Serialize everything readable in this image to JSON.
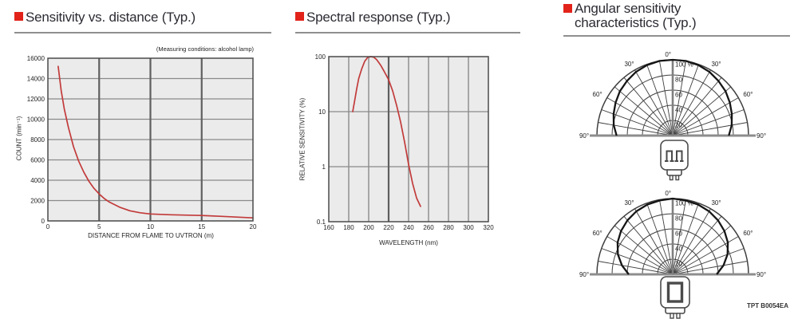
{
  "colors": {
    "accent": "#e2231a",
    "curve": "#c23a3a",
    "plot_bg": "#ebebeb",
    "grid": "#8a8a8a",
    "grid_strong": "#5f5f5f",
    "frame": "#4a4a4a",
    "polar_grid": "#3f3f3f",
    "polar_line": "#151515"
  },
  "panels": {
    "distance": {
      "title": "Sensitivity vs. distance (Typ.)",
      "note": "(Measuring conditions: alcohol lamp)"
    },
    "spectral": {
      "title": "Spectral response (Typ.)"
    },
    "angular": {
      "title_line1": "Angular sensitivity",
      "title_line2": "characteristics (Typ.)"
    }
  },
  "footnote": "TPT B0054EA",
  "chart_data": [
    {
      "type": "line",
      "title": "Sensitivity vs. distance (Typ.)",
      "note": "(Measuring conditions: alcohol lamp)",
      "xlabel": "DISTANCE FROM FLAME TO UVTRON (m)",
      "ylabel": "COUNT (min⁻¹)",
      "xlim": [
        0,
        20
      ],
      "ylim": [
        0,
        16000
      ],
      "xticks": [
        0,
        5,
        10,
        15,
        20
      ],
      "yticks": [
        0,
        2000,
        4000,
        6000,
        8000,
        10000,
        12000,
        14000,
        16000
      ],
      "x_gridlines": [],
      "x_strong_gridlines": [
        5,
        10,
        15
      ],
      "grid": true,
      "legend": "none",
      "series": [
        {
          "name": "count-vs-distance",
          "color": "#c23a3a",
          "x": [
            1,
            1.3,
            1.6,
            2,
            2.5,
            3,
            3.5,
            4,
            4.5,
            5,
            5.5,
            6,
            7,
            8,
            9,
            10,
            12,
            15,
            17,
            20
          ],
          "y": [
            15200,
            12800,
            11000,
            9200,
            7300,
            5900,
            4800,
            3900,
            3200,
            2650,
            2200,
            1850,
            1350,
            1000,
            800,
            680,
            600,
            530,
            450,
            300
          ]
        }
      ]
    },
    {
      "type": "line",
      "yscale": "log",
      "title": "Spectral response (Typ.)",
      "xlabel": "WAVELENGTH (nm)",
      "ylabel": "RELATIVE SENSITIVITY (%)",
      "xlim": [
        160,
        320
      ],
      "ylim": [
        0.1,
        100
      ],
      "xticks": [
        160,
        180,
        200,
        220,
        240,
        260,
        280,
        300,
        320
      ],
      "yticks": [
        0.1,
        1,
        10,
        100
      ],
      "x_gridlines": [
        180,
        200,
        240,
        260,
        280,
        300
      ],
      "x_strong_gridlines": [
        220
      ],
      "grid": true,
      "legend": "none",
      "series": [
        {
          "name": "spectral-response",
          "color": "#c23a3a",
          "x": [
            184,
            186,
            188,
            190,
            193,
            196,
            199,
            202,
            205,
            208,
            212,
            216,
            220,
            224,
            228,
            232,
            236,
            240,
            244,
            248,
            252
          ],
          "y": [
            10,
            16,
            26,
            40,
            60,
            82,
            97,
            100,
            98,
            88,
            70,
            52,
            38,
            24,
            13,
            6.5,
            2.8,
            1.1,
            0.5,
            0.27,
            0.19
          ]
        }
      ]
    },
    {
      "type": "polar",
      "title": "Angular sensitivity characteristics (Typ.)",
      "unit_label": "100 %",
      "rmax": 100,
      "rticks": [
        20,
        40,
        60,
        80,
        100
      ],
      "angle_ticks_deg": [
        0,
        30,
        60,
        90
      ],
      "plots": [
        {
          "name": "front-view",
          "angles_deg": [
            -90,
            -80,
            -70,
            -60,
            -50,
            -40,
            -30,
            -20,
            -10,
            0,
            10,
            20,
            30,
            40,
            50,
            60,
            70,
            80,
            90
          ],
          "values": [
            74,
            79,
            83,
            87,
            91,
            94,
            97,
            99,
            100,
            100,
            100,
            99,
            97,
            94,
            91,
            87,
            83,
            79,
            74
          ]
        },
        {
          "name": "side-view",
          "angles_deg": [
            -90,
            -80,
            -70,
            -60,
            -50,
            -40,
            -30,
            -20,
            -10,
            0,
            10,
            20,
            30,
            40,
            50,
            60,
            70,
            80,
            90
          ],
          "values": [
            58,
            68,
            77,
            84,
            89,
            93,
            96,
            98,
            99,
            100,
            99,
            98,
            96,
            93,
            89,
            84,
            77,
            68,
            58
          ]
        }
      ]
    }
  ]
}
